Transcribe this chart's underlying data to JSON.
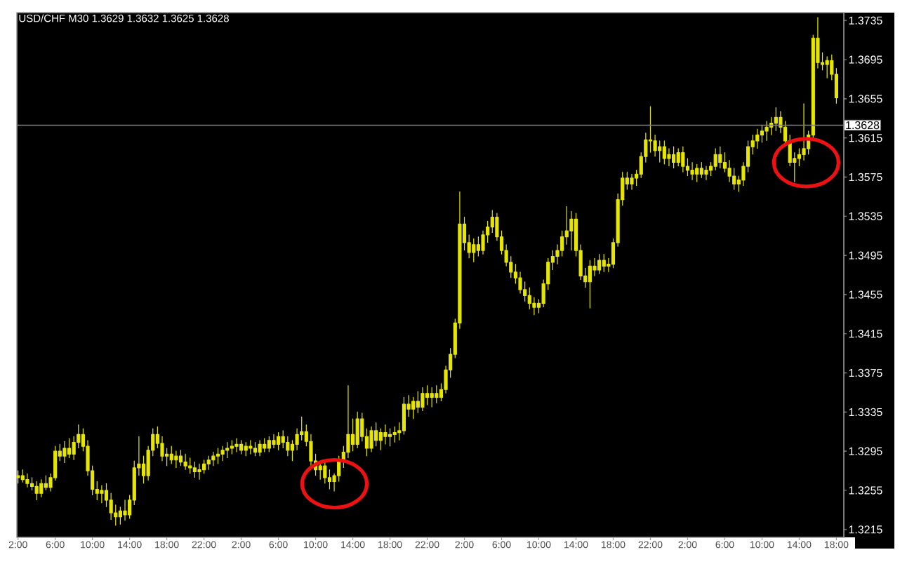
{
  "chart_data": {
    "type": "candlestick",
    "title": "USD/CHF M30 1.3629 1.3632 1.3625 1.3628",
    "color": "#e6e600",
    "categories": [
      "2:00",
      null,
      null,
      null,
      null,
      null,
      null,
      null,
      "6:00",
      null,
      null,
      null,
      null,
      null,
      null,
      null,
      "10:00",
      null,
      null,
      null,
      null,
      null,
      null,
      null,
      "14:00",
      null,
      null,
      null,
      null,
      null,
      null,
      null,
      "18:00",
      null,
      null,
      null,
      null,
      null,
      null,
      null,
      "22:00",
      null,
      null,
      null,
      null,
      null,
      null,
      null,
      "2:00",
      null,
      null,
      null,
      null,
      null,
      null,
      null,
      "6:00",
      null,
      null,
      null,
      null,
      null,
      null,
      null,
      "10:00",
      null,
      null,
      null,
      null,
      null,
      null,
      null,
      "14:00",
      null,
      null,
      null,
      null,
      null,
      null,
      null,
      "18:00",
      null,
      null,
      null,
      null,
      null,
      null,
      null,
      "22:00",
      null,
      null,
      null,
      null,
      null,
      null,
      null,
      "2:00",
      null,
      null,
      null,
      null,
      null,
      null,
      null,
      "6:00",
      null,
      null,
      null,
      null,
      null,
      null,
      null,
      "10:00",
      null,
      null,
      null,
      null,
      null,
      null,
      null,
      "14:00",
      null,
      null,
      null,
      null,
      null,
      null,
      null,
      "18:00",
      null,
      null,
      null,
      null,
      null,
      null,
      null,
      "22:00",
      null,
      null,
      null,
      null,
      null,
      null,
      null,
      "2:00",
      null,
      null,
      null,
      null,
      null,
      null,
      null,
      "6:00",
      null,
      null,
      null,
      null,
      null,
      null,
      null,
      "10:00",
      null,
      null,
      null,
      null,
      null,
      null,
      null,
      "14:00",
      null,
      null,
      null,
      null,
      null,
      null,
      null,
      "18:00"
    ],
    "ohlc": [
      [
        1.3268,
        1.3275,
        1.3262,
        1.327
      ],
      [
        1.327,
        1.3276,
        1.3263,
        1.3266
      ],
      [
        1.3266,
        1.3272,
        1.3258,
        1.3262
      ],
      [
        1.3262,
        1.3268,
        1.3255,
        1.3259
      ],
      [
        1.3259,
        1.3264,
        1.3245,
        1.3252
      ],
      [
        1.3252,
        1.3266,
        1.3248,
        1.3262
      ],
      [
        1.3262,
        1.327,
        1.3255,
        1.3258
      ],
      [
        1.3258,
        1.3272,
        1.3254,
        1.3268
      ],
      [
        1.3268,
        1.33,
        1.3265,
        1.3295
      ],
      [
        1.3295,
        1.3302,
        1.3285,
        1.329
      ],
      [
        1.329,
        1.3305,
        1.3283,
        1.3298
      ],
      [
        1.3298,
        1.3308,
        1.3288,
        1.3292
      ],
      [
        1.3292,
        1.331,
        1.3286,
        1.3304
      ],
      [
        1.3304,
        1.3322,
        1.3298,
        1.3312
      ],
      [
        1.3312,
        1.3318,
        1.3295,
        1.33
      ],
      [
        1.33,
        1.3306,
        1.327,
        1.3275
      ],
      [
        1.3275,
        1.328,
        1.325,
        1.3256
      ],
      [
        1.3256,
        1.3264,
        1.3245,
        1.3252
      ],
      [
        1.3252,
        1.326,
        1.3242,
        1.3255
      ],
      [
        1.3255,
        1.3262,
        1.3238,
        1.3245
      ],
      [
        1.3245,
        1.3252,
        1.3225,
        1.3232
      ],
      [
        1.3232,
        1.324,
        1.3219,
        1.3228
      ],
      [
        1.3228,
        1.3238,
        1.322,
        1.3234
      ],
      [
        1.3234,
        1.3245,
        1.3224,
        1.323
      ],
      [
        1.323,
        1.325,
        1.3226,
        1.3245
      ],
      [
        1.3245,
        1.3285,
        1.324,
        1.3278
      ],
      [
        1.3278,
        1.331,
        1.327,
        1.3282
      ],
      [
        1.3282,
        1.329,
        1.3262,
        1.327
      ],
      [
        1.327,
        1.33,
        1.3265,
        1.3296
      ],
      [
        1.3296,
        1.3318,
        1.329,
        1.3312
      ],
      [
        1.3312,
        1.332,
        1.3298,
        1.3303
      ],
      [
        1.3303,
        1.331,
        1.3285,
        1.329
      ],
      [
        1.329,
        1.3298,
        1.328,
        1.3292
      ],
      [
        1.3292,
        1.33,
        1.3282,
        1.3286
      ],
      [
        1.3286,
        1.3295,
        1.3278,
        1.329
      ],
      [
        1.329,
        1.3296,
        1.328,
        1.3284
      ],
      [
        1.3284,
        1.3292,
        1.3276,
        1.328
      ],
      [
        1.328,
        1.3288,
        1.3272,
        1.3278
      ],
      [
        1.3278,
        1.3284,
        1.3268,
        1.3274
      ],
      [
        1.3274,
        1.3282,
        1.3266,
        1.3276
      ],
      [
        1.3276,
        1.3286,
        1.3272,
        1.3282
      ],
      [
        1.3282,
        1.329,
        1.3276,
        1.3286
      ],
      [
        1.3286,
        1.3294,
        1.328,
        1.329
      ],
      [
        1.329,
        1.3298,
        1.3282,
        1.3292
      ],
      [
        1.3292,
        1.33,
        1.3285,
        1.3296
      ],
      [
        1.3296,
        1.3304,
        1.3288,
        1.3298
      ],
      [
        1.3298,
        1.3306,
        1.3292,
        1.33
      ],
      [
        1.33,
        1.3308,
        1.3294,
        1.3302
      ],
      [
        1.3302,
        1.3306,
        1.3292,
        1.3296
      ],
      [
        1.3296,
        1.3304,
        1.329,
        1.33
      ],
      [
        1.33,
        1.3306,
        1.3292,
        1.3298
      ],
      [
        1.3298,
        1.3304,
        1.329,
        1.3294
      ],
      [
        1.3294,
        1.3306,
        1.329,
        1.3302
      ],
      [
        1.3302,
        1.3308,
        1.3294,
        1.3298
      ],
      [
        1.3298,
        1.331,
        1.3294,
        1.3306
      ],
      [
        1.3306,
        1.3312,
        1.3298,
        1.3302
      ],
      [
        1.3302,
        1.3314,
        1.3296,
        1.331
      ],
      [
        1.331,
        1.3316,
        1.3298,
        1.3304
      ],
      [
        1.3304,
        1.331,
        1.329,
        1.3296
      ],
      [
        1.3296,
        1.3306,
        1.3285,
        1.3302
      ],
      [
        1.3302,
        1.3318,
        1.3296,
        1.3312
      ],
      [
        1.3312,
        1.333,
        1.3306,
        1.3315
      ],
      [
        1.3315,
        1.3322,
        1.33,
        1.3305
      ],
      [
        1.3305,
        1.3312,
        1.328,
        1.3285
      ],
      [
        1.3285,
        1.3292,
        1.327,
        1.3276
      ],
      [
        1.3276,
        1.3284,
        1.3266,
        1.328
      ],
      [
        1.328,
        1.3286,
        1.3262,
        1.3268
      ],
      [
        1.3268,
        1.3276,
        1.3256,
        1.3264
      ],
      [
        1.3264,
        1.3272,
        1.3254,
        1.327
      ],
      [
        1.327,
        1.329,
        1.3264,
        1.3286
      ],
      [
        1.3286,
        1.33,
        1.3278,
        1.3294
      ],
      [
        1.3294,
        1.3362,
        1.3288,
        1.3312
      ],
      [
        1.3312,
        1.3328,
        1.3295,
        1.3302
      ],
      [
        1.3302,
        1.3335,
        1.3298,
        1.3328
      ],
      [
        1.3328,
        1.3334,
        1.3305,
        1.331
      ],
      [
        1.331,
        1.3318,
        1.329,
        1.3298
      ],
      [
        1.3298,
        1.332,
        1.3294,
        1.3316
      ],
      [
        1.3316,
        1.3324,
        1.33,
        1.3306
      ],
      [
        1.3306,
        1.3318,
        1.3296,
        1.3314
      ],
      [
        1.3314,
        1.3322,
        1.3302,
        1.331
      ],
      [
        1.331,
        1.3318,
        1.33,
        1.3312
      ],
      [
        1.3312,
        1.332,
        1.3304,
        1.3314
      ],
      [
        1.3314,
        1.3324,
        1.3306,
        1.3316
      ],
      [
        1.3316,
        1.335,
        1.3312,
        1.3343
      ],
      [
        1.3343,
        1.3352,
        1.333,
        1.3338
      ],
      [
        1.3338,
        1.335,
        1.3328,
        1.3346
      ],
      [
        1.3346,
        1.3356,
        1.3334,
        1.334
      ],
      [
        1.334,
        1.336,
        1.3336,
        1.3354
      ],
      [
        1.3354,
        1.3362,
        1.3342,
        1.335
      ],
      [
        1.335,
        1.336,
        1.334,
        1.3354
      ],
      [
        1.3354,
        1.3362,
        1.3344,
        1.335
      ],
      [
        1.335,
        1.3364,
        1.3346,
        1.3358
      ],
      [
        1.3358,
        1.3382,
        1.3354,
        1.3378
      ],
      [
        1.3378,
        1.34,
        1.337,
        1.3394
      ],
      [
        1.3394,
        1.343,
        1.339,
        1.3426
      ],
      [
        1.3426,
        1.356,
        1.342,
        1.3527
      ],
      [
        1.3527,
        1.3534,
        1.35,
        1.3508
      ],
      [
        1.3508,
        1.3516,
        1.3492,
        1.3498
      ],
      [
        1.3498,
        1.3512,
        1.3488,
        1.3506
      ],
      [
        1.3506,
        1.3514,
        1.3494,
        1.35
      ],
      [
        1.35,
        1.352,
        1.3496,
        1.3516
      ],
      [
        1.3516,
        1.353,
        1.3508,
        1.3524
      ],
      [
        1.3524,
        1.3541,
        1.3518,
        1.3534
      ],
      [
        1.3534,
        1.3538,
        1.351,
        1.3514
      ],
      [
        1.3514,
        1.352,
        1.3496,
        1.35
      ],
      [
        1.35,
        1.3506,
        1.3484,
        1.3488
      ],
      [
        1.3488,
        1.3494,
        1.3472,
        1.3478
      ],
      [
        1.3478,
        1.3486,
        1.3466,
        1.3472
      ],
      [
        1.3472,
        1.3478,
        1.3456,
        1.346
      ],
      [
        1.346,
        1.3468,
        1.3448,
        1.3454
      ],
      [
        1.3454,
        1.3462,
        1.344,
        1.3446
      ],
      [
        1.3446,
        1.3452,
        1.3434,
        1.3442
      ],
      [
        1.3442,
        1.345,
        1.3436,
        1.3446
      ],
      [
        1.3446,
        1.347,
        1.3442,
        1.3466
      ],
      [
        1.3466,
        1.3492,
        1.346,
        1.3488
      ],
      [
        1.3488,
        1.35,
        1.348,
        1.3494
      ],
      [
        1.3494,
        1.3506,
        1.3486,
        1.35
      ],
      [
        1.35,
        1.352,
        1.3494,
        1.3514
      ],
      [
        1.3514,
        1.3545,
        1.3506,
        1.352
      ],
      [
        1.352,
        1.354,
        1.35,
        1.3532
      ],
      [
        1.3532,
        1.3538,
        1.3494,
        1.35
      ],
      [
        1.35,
        1.3506,
        1.347,
        1.3474
      ],
      [
        1.3474,
        1.3482,
        1.3462,
        1.3468
      ],
      [
        1.3468,
        1.349,
        1.3441,
        1.3484
      ],
      [
        1.3484,
        1.3492,
        1.3474,
        1.348
      ],
      [
        1.348,
        1.3496,
        1.3476,
        1.349
      ],
      [
        1.349,
        1.3496,
        1.3478,
        1.3484
      ],
      [
        1.3484,
        1.3492,
        1.3478,
        1.3486
      ],
      [
        1.3486,
        1.3512,
        1.3482,
        1.3508
      ],
      [
        1.3508,
        1.3558,
        1.3504,
        1.3552
      ],
      [
        1.3552,
        1.358,
        1.3546,
        1.3574
      ],
      [
        1.3574,
        1.358,
        1.3562,
        1.3568
      ],
      [
        1.3568,
        1.3578,
        1.3562,
        1.3574
      ],
      [
        1.3574,
        1.3582,
        1.3566,
        1.3578
      ],
      [
        1.3578,
        1.36,
        1.3574,
        1.3596
      ],
      [
        1.3596,
        1.362,
        1.359,
        1.3613
      ],
      [
        1.3613,
        1.3647,
        1.36,
        1.3612
      ],
      [
        1.3612,
        1.3618,
        1.3596,
        1.3602
      ],
      [
        1.3602,
        1.3612,
        1.359,
        1.3606
      ],
      [
        1.3606,
        1.3612,
        1.3588,
        1.3594
      ],
      [
        1.3594,
        1.3604,
        1.3586,
        1.3598
      ],
      [
        1.3598,
        1.3606,
        1.3584,
        1.359
      ],
      [
        1.359,
        1.3604,
        1.3586,
        1.36
      ],
      [
        1.36,
        1.3606,
        1.358,
        1.3586
      ],
      [
        1.3586,
        1.3594,
        1.3576,
        1.3582
      ],
      [
        1.3582,
        1.359,
        1.3572,
        1.3578
      ],
      [
        1.3578,
        1.3588,
        1.357,
        1.3584
      ],
      [
        1.3584,
        1.359,
        1.3574,
        1.3578
      ],
      [
        1.3578,
        1.3586,
        1.3572,
        1.3582
      ],
      [
        1.3582,
        1.359,
        1.3576,
        1.3586
      ],
      [
        1.3586,
        1.3604,
        1.3582,
        1.3598
      ],
      [
        1.3598,
        1.3606,
        1.3584,
        1.359
      ],
      [
        1.359,
        1.36,
        1.358,
        1.3584
      ],
      [
        1.3584,
        1.3592,
        1.357,
        1.3576
      ],
      [
        1.3576,
        1.3584,
        1.3562,
        1.3568
      ],
      [
        1.3568,
        1.3576,
        1.356,
        1.3572
      ],
      [
        1.3572,
        1.359,
        1.3566,
        1.3586
      ],
      [
        1.3586,
        1.3612,
        1.358,
        1.3606
      ],
      [
        1.3606,
        1.3618,
        1.3598,
        1.3612
      ],
      [
        1.3612,
        1.3624,
        1.3604,
        1.3618
      ],
      [
        1.3618,
        1.3628,
        1.361,
        1.3622
      ],
      [
        1.3622,
        1.3632,
        1.3612,
        1.3626
      ],
      [
        1.3626,
        1.3636,
        1.3618,
        1.363
      ],
      [
        1.363,
        1.3646,
        1.3622,
        1.3636
      ],
      [
        1.3636,
        1.3642,
        1.362,
        1.3626
      ],
      [
        1.3626,
        1.3632,
        1.3606,
        1.3612
      ],
      [
        1.3612,
        1.3618,
        1.3586,
        1.359
      ],
      [
        1.359,
        1.36,
        1.357,
        1.3594
      ],
      [
        1.3594,
        1.3604,
        1.3586,
        1.3598
      ],
      [
        1.3598,
        1.365,
        1.3592,
        1.3604
      ],
      [
        1.3604,
        1.3622,
        1.3598,
        1.3618
      ],
      [
        1.3618,
        1.372,
        1.3614,
        1.3717
      ],
      [
        1.3717,
        1.3738,
        1.3686,
        1.3692
      ],
      [
        1.3692,
        1.3702,
        1.3684,
        1.369
      ],
      [
        1.369,
        1.3698,
        1.3676,
        1.3694
      ],
      [
        1.3694,
        1.37,
        1.3674,
        1.368
      ],
      [
        1.368,
        1.3686,
        1.365,
        1.3656
      ]
    ],
    "ylim": [
      1.3207,
      1.3743
    ],
    "yticks": [
      1.3215,
      1.3255,
      1.3295,
      1.3335,
      1.3375,
      1.3415,
      1.3455,
      1.3495,
      1.3535,
      1.3575,
      1.3615,
      1.3655,
      1.3695,
      1.3735
    ],
    "ref_lines": [
      {
        "axis": "y",
        "value": 1.3628,
        "label": "1.3628",
        "color": "#808080"
      }
    ]
  }
}
